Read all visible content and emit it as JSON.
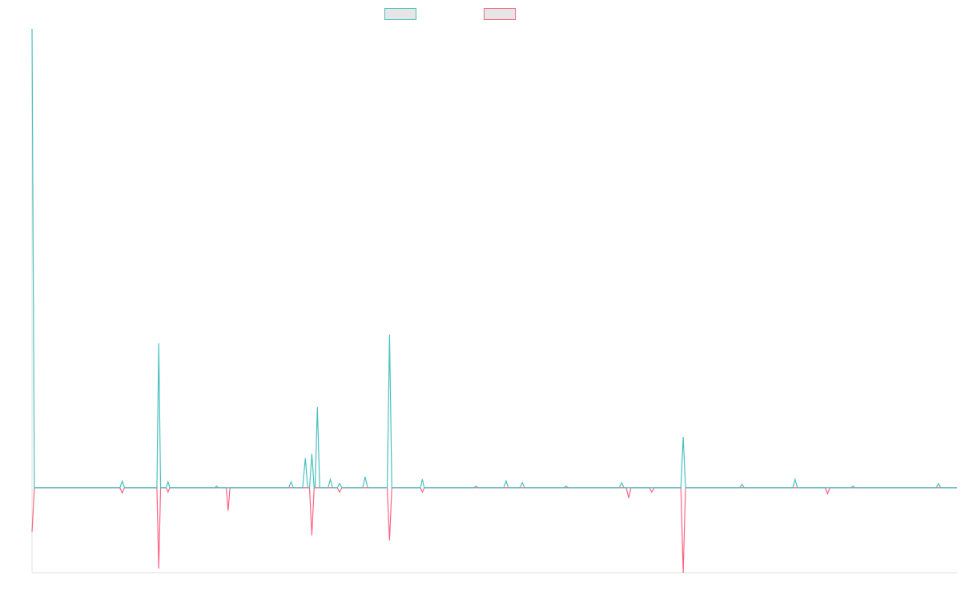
{
  "chart_data": {
    "type": "line",
    "title": "",
    "xlabel": "",
    "ylabel": "",
    "grid": false,
    "legend": "top-center",
    "colors": {
      "series_a": "#4bc0c0",
      "series_b": "#ff6384",
      "legend_fill": "#e6e6e6",
      "axis": "#e0e0e0"
    },
    "ylim": [
      -1,
      5.4
    ],
    "xlim": [
      0,
      200
    ],
    "baseline": 0,
    "series": [
      {
        "name": "",
        "color": "#4bc0c0",
        "points": [
          [
            0,
            5.4
          ],
          [
            0.5,
            0
          ],
          [
            19,
            0
          ],
          [
            19.5,
            0.08
          ],
          [
            20,
            0
          ],
          [
            27,
            0
          ],
          [
            27.4,
            1.7
          ],
          [
            27.8,
            0
          ],
          [
            29,
            0
          ],
          [
            29.4,
            0.07
          ],
          [
            29.8,
            0
          ],
          [
            39.5,
            0
          ],
          [
            39.9,
            0.02
          ],
          [
            40.3,
            0
          ],
          [
            55.5,
            0
          ],
          [
            56,
            0.07
          ],
          [
            56.5,
            0
          ],
          [
            58.5,
            0
          ],
          [
            59.1,
            0.35
          ],
          [
            59.6,
            0
          ],
          [
            60,
            0
          ],
          [
            60.5,
            0.4
          ],
          [
            61,
            0
          ],
          [
            61.2,
            0
          ],
          [
            61.7,
            0.95
          ],
          [
            62.2,
            0
          ],
          [
            64,
            0
          ],
          [
            64.5,
            0.1
          ],
          [
            65,
            0
          ],
          [
            66,
            0
          ],
          [
            66.5,
            0.05
          ],
          [
            67,
            0
          ],
          [
            71.5,
            0
          ],
          [
            72,
            0.13
          ],
          [
            72.6,
            0
          ],
          [
            76.8,
            0
          ],
          [
            77.3,
            1.8
          ],
          [
            77.8,
            0
          ],
          [
            84,
            0
          ],
          [
            84.4,
            0.1
          ],
          [
            84.8,
            0
          ],
          [
            95.5,
            0
          ],
          [
            96,
            0.02
          ],
          [
            96.5,
            0
          ],
          [
            102,
            0
          ],
          [
            102.5,
            0.08
          ],
          [
            103,
            0
          ],
          [
            105.5,
            0
          ],
          [
            106,
            0.06
          ],
          [
            106.5,
            0
          ],
          [
            115,
            0
          ],
          [
            115.5,
            0.02
          ],
          [
            116,
            0
          ],
          [
            127,
            0
          ],
          [
            127.5,
            0.06
          ],
          [
            128,
            0
          ],
          [
            140.3,
            0
          ],
          [
            140.8,
            0.6
          ],
          [
            141.3,
            0
          ],
          [
            153,
            0
          ],
          [
            153.5,
            0.04
          ],
          [
            154,
            0
          ],
          [
            164.5,
            0
          ],
          [
            165,
            0.1
          ],
          [
            165.5,
            0
          ],
          [
            177,
            0
          ],
          [
            177.5,
            0.02
          ],
          [
            178,
            0
          ],
          [
            195.5,
            0
          ],
          [
            196,
            0.05
          ],
          [
            196.5,
            0
          ],
          [
            200,
            0
          ]
        ]
      },
      {
        "name": "",
        "color": "#ff6384",
        "points": [
          [
            0,
            -0.52
          ],
          [
            0.5,
            0
          ],
          [
            19,
            0
          ],
          [
            19.5,
            -0.06
          ],
          [
            20,
            0
          ],
          [
            27,
            0
          ],
          [
            27.4,
            -0.95
          ],
          [
            27.8,
            0
          ],
          [
            29,
            0
          ],
          [
            29.4,
            -0.05
          ],
          [
            29.8,
            0
          ],
          [
            42,
            0
          ],
          [
            42.4,
            -0.27
          ],
          [
            42.8,
            0
          ],
          [
            60,
            0
          ],
          [
            60.5,
            -0.56
          ],
          [
            61,
            0
          ],
          [
            66,
            0
          ],
          [
            66.5,
            -0.05
          ],
          [
            67,
            0
          ],
          [
            76.8,
            0
          ],
          [
            77.3,
            -0.62
          ],
          [
            77.8,
            0
          ],
          [
            84,
            0
          ],
          [
            84.4,
            -0.05
          ],
          [
            84.8,
            0
          ],
          [
            128.5,
            0
          ],
          [
            129,
            -0.12
          ],
          [
            129.5,
            0
          ],
          [
            133.5,
            0
          ],
          [
            134,
            -0.05
          ],
          [
            134.5,
            0
          ],
          [
            140.3,
            0
          ],
          [
            140.8,
            -1.0
          ],
          [
            141.3,
            0
          ],
          [
            171.5,
            0
          ],
          [
            172,
            -0.07
          ],
          [
            172.5,
            0
          ],
          [
            200,
            0
          ]
        ]
      }
    ]
  }
}
